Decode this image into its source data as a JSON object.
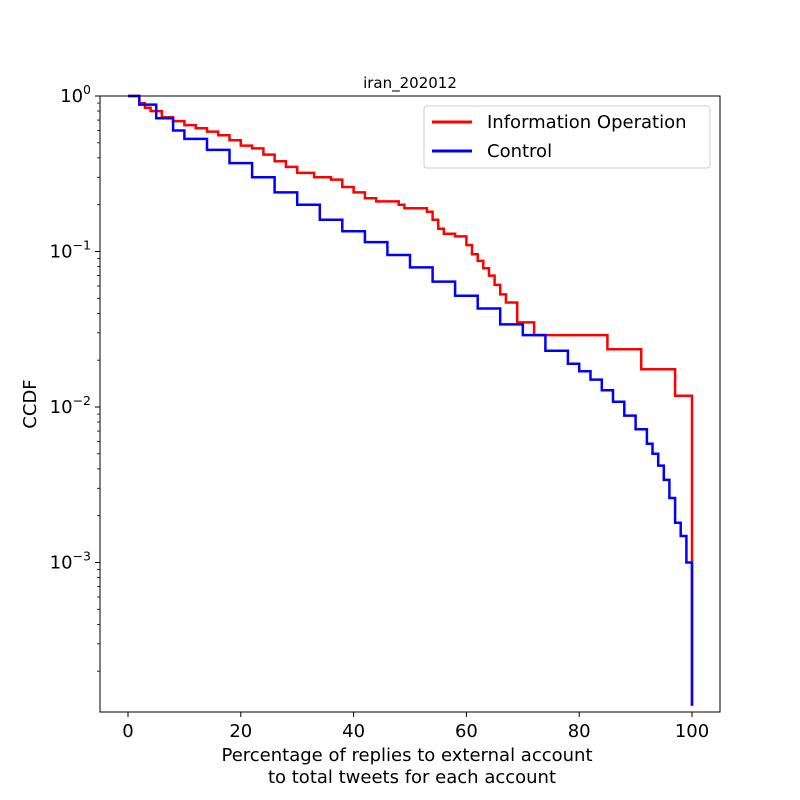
{
  "chart_data": {
    "type": "line",
    "title": "iran_202012",
    "xlabel": [
      "Percentage of replies to external account",
      "to total tweets for each account"
    ],
    "ylabel": "CCDF",
    "xlim": [
      -5,
      105
    ],
    "ylim": [
      0.00012,
      1
    ],
    "yscale": "log",
    "x_ticks": [
      0,
      20,
      40,
      60,
      80,
      100
    ],
    "x_tick_labels": [
      "0",
      "20",
      "40",
      "60",
      "80",
      "100"
    ],
    "y_ticks": [
      1,
      0.1,
      0.01,
      0.001
    ],
    "y_tick_labels": [
      {
        "base": "10",
        "exp": "0"
      },
      {
        "base": "10",
        "exp": "−1"
      },
      {
        "base": "10",
        "exp": "−2"
      },
      {
        "base": "10",
        "exp": "−3"
      }
    ],
    "legend_position": "upper right",
    "grid": false,
    "series": [
      {
        "name": "Information Operation",
        "color": "#ff0000",
        "x": [
          0,
          2,
          3,
          4,
          6,
          8,
          10,
          12,
          14,
          16,
          18,
          20,
          22,
          24,
          26,
          28,
          30,
          33,
          36,
          38,
          40,
          42,
          44,
          48,
          49,
          50,
          52,
          53,
          54,
          55,
          56,
          58,
          60,
          61,
          62,
          63,
          64,
          65,
          66,
          67,
          69,
          69,
          72,
          72,
          85,
          85,
          91,
          91,
          97,
          97,
          100,
          100
        ],
        "y": [
          1,
          0.9,
          0.84,
          0.8,
          0.73,
          0.69,
          0.65,
          0.62,
          0.59,
          0.56,
          0.52,
          0.48,
          0.46,
          0.42,
          0.38,
          0.35,
          0.32,
          0.3,
          0.29,
          0.26,
          0.24,
          0.22,
          0.21,
          0.2,
          0.19,
          0.19,
          0.19,
          0.18,
          0.16,
          0.14,
          0.13,
          0.125,
          0.11,
          0.096,
          0.087,
          0.078,
          0.07,
          0.061,
          0.053,
          0.047,
          0.047,
          0.035,
          0.035,
          0.029,
          0.029,
          0.0235,
          0.0235,
          0.0175,
          0.0175,
          0.0118,
          0.0118,
          0.00012
        ]
      },
      {
        "name": "Control",
        "color": "#0000ff",
        "x": [
          0,
          2,
          5,
          8,
          10,
          14,
          18,
          22,
          26,
          30,
          34,
          38,
          42,
          46,
          50,
          54,
          58,
          62,
          66,
          70,
          74,
          78,
          80,
          82,
          84,
          86,
          88,
          90,
          92,
          93,
          94,
          95,
          96,
          97,
          98,
          99,
          99,
          100,
          100
        ],
        "y": [
          1,
          0.88,
          0.72,
          0.6,
          0.53,
          0.45,
          0.37,
          0.3,
          0.24,
          0.2,
          0.16,
          0.135,
          0.115,
          0.095,
          0.079,
          0.064,
          0.052,
          0.043,
          0.034,
          0.029,
          0.023,
          0.019,
          0.017,
          0.015,
          0.0128,
          0.0108,
          0.0088,
          0.0072,
          0.0058,
          0.005,
          0.0042,
          0.0034,
          0.0026,
          0.0018,
          0.00148,
          0.00148,
          0.001,
          0.001,
          0.00012
        ]
      }
    ]
  }
}
